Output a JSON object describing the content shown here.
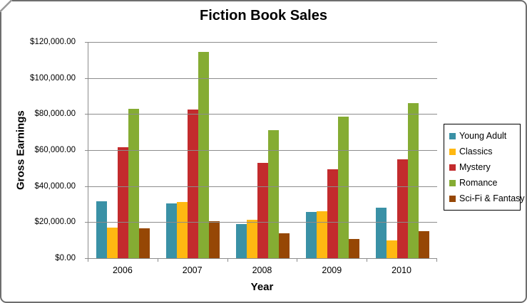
{
  "chart_data": {
    "type": "bar",
    "title": "Fiction Book Sales",
    "xlabel": "Year",
    "ylabel": "Gross Earnings",
    "categories": [
      "2006",
      "2007",
      "2008",
      "2009",
      "2010"
    ],
    "series": [
      {
        "name": "Young Adult",
        "color": "#3A91A6",
        "values": [
          31500,
          30500,
          19000,
          25500,
          28000
        ]
      },
      {
        "name": "Classics",
        "color": "#FFB812",
        "values": [
          17000,
          31000,
          21500,
          26000,
          10000
        ]
      },
      {
        "name": "Mystery",
        "color": "#C32B2D",
        "values": [
          61500,
          82500,
          53000,
          49500,
          55000
        ]
      },
      {
        "name": "Romance",
        "color": "#85AC33",
        "values": [
          83000,
          114500,
          71000,
          78500,
          86000
        ]
      },
      {
        "name": "Sci-Fi & Fantasy",
        "color": "#964705",
        "values": [
          16500,
          20500,
          14000,
          10500,
          15000
        ]
      }
    ],
    "ylim": [
      0,
      120000
    ],
    "y_tick_step": 20000,
    "y_tick_labels": [
      "$120,000.00",
      "$100,000.00",
      "$80,000.00",
      "$60,000.00",
      "$40,000.00",
      "$20,000.00",
      "$0.00"
    ],
    "grid": true,
    "legend_position": "right",
    "colors": {
      "gridline": "#8C8C8C",
      "axis": "#8C8C8C",
      "legend_border": "#000000",
      "frame_border": "#6E6E6E",
      "background": "#FFFFFF",
      "text": "#000000"
    }
  }
}
